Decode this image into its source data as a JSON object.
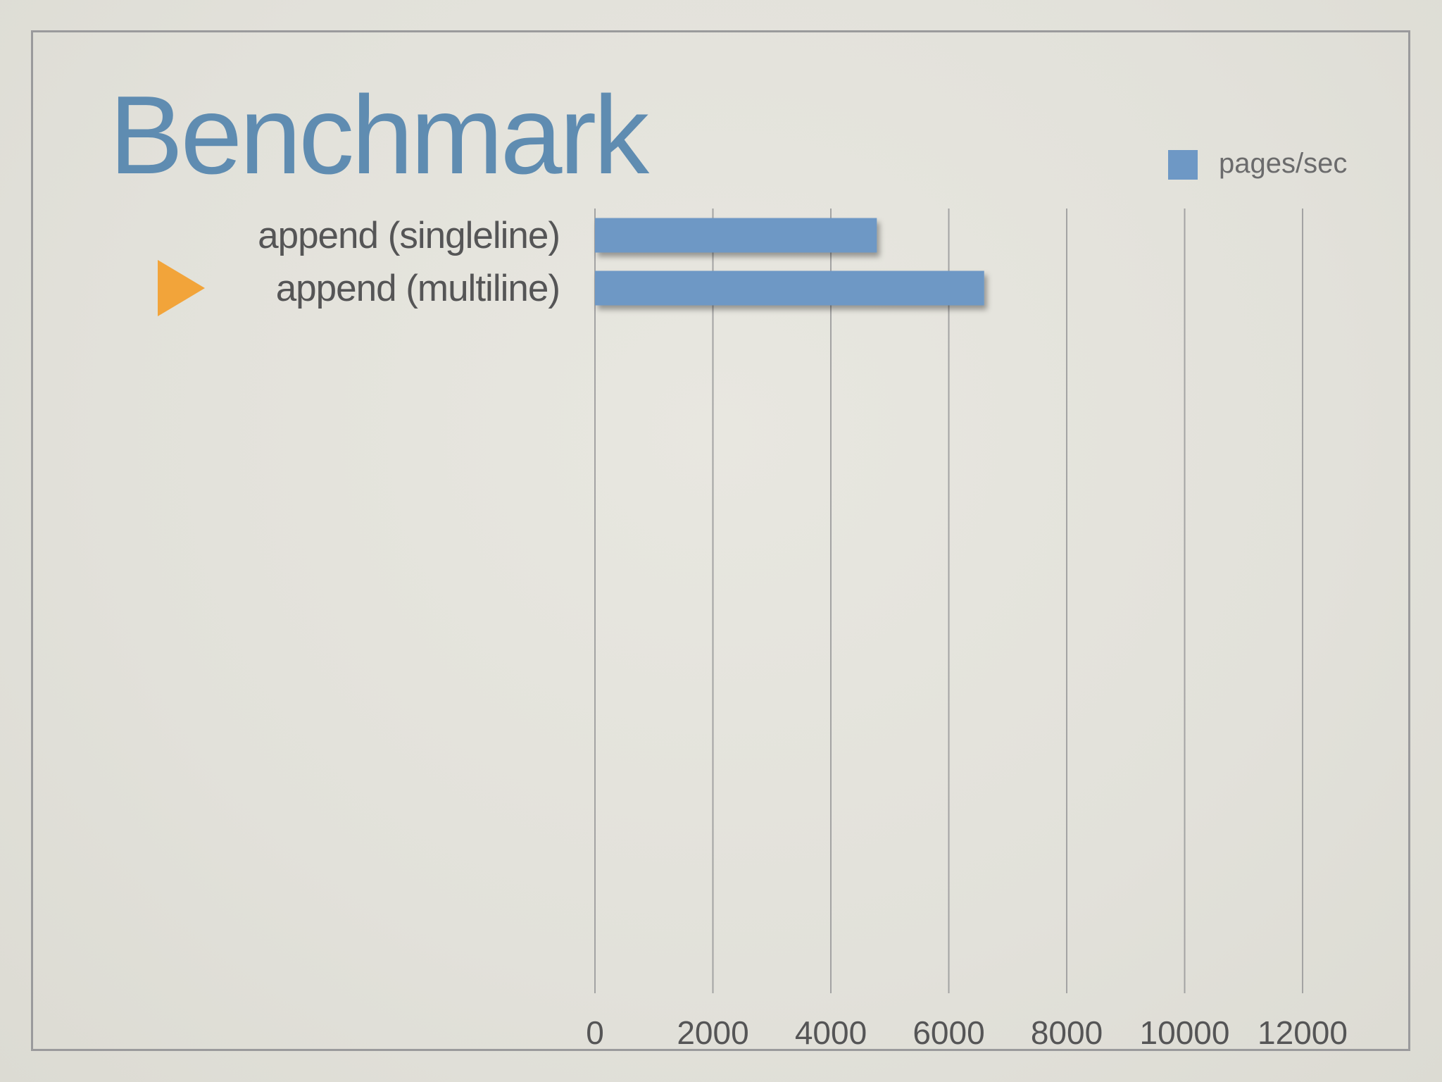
{
  "slide": {
    "title": "Benchmark"
  },
  "chart_data": {
    "type": "bar",
    "orientation": "horizontal",
    "categories": [
      "append (singleline)",
      "append (multiline)"
    ],
    "series": [
      {
        "name": "pages/sec",
        "values": [
          4780,
          6600
        ]
      }
    ],
    "xlim": [
      0,
      12000
    ],
    "xticks": [
      "0",
      "2000",
      "4000",
      "6000",
      "8000",
      "10000",
      "12000"
    ],
    "grid": true,
    "legend_position": "top-right",
    "highlighted_category": "append (multiline)",
    "colors": {
      "bar": "#6e98c5",
      "pointer": "#f2a43a",
      "grid": "#a3a3a3"
    },
    "pointer_icon": "triangle-right-icon"
  }
}
